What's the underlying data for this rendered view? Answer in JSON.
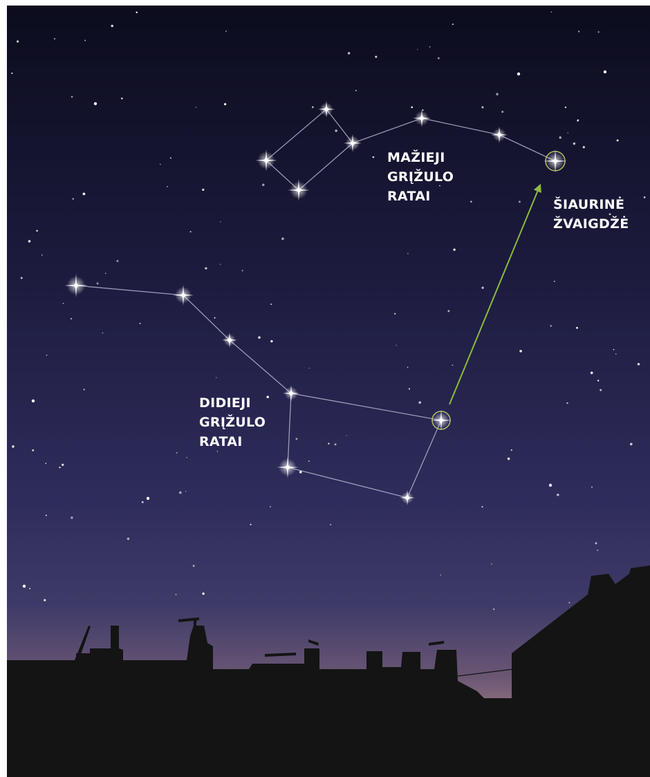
{
  "labels": [
    {
      "lines": [
        "MAŽIEJI",
        "GRĮŽULO",
        "RATAI"
      ]
    },
    {
      "lines": [
        "ŠIAURINĖ",
        "ŽVAIGDŽĖ"
      ]
    },
    {
      "lines": [
        "DIDIEJI",
        "GRĮŽULO",
        "RATAI"
      ]
    }
  ]
}
